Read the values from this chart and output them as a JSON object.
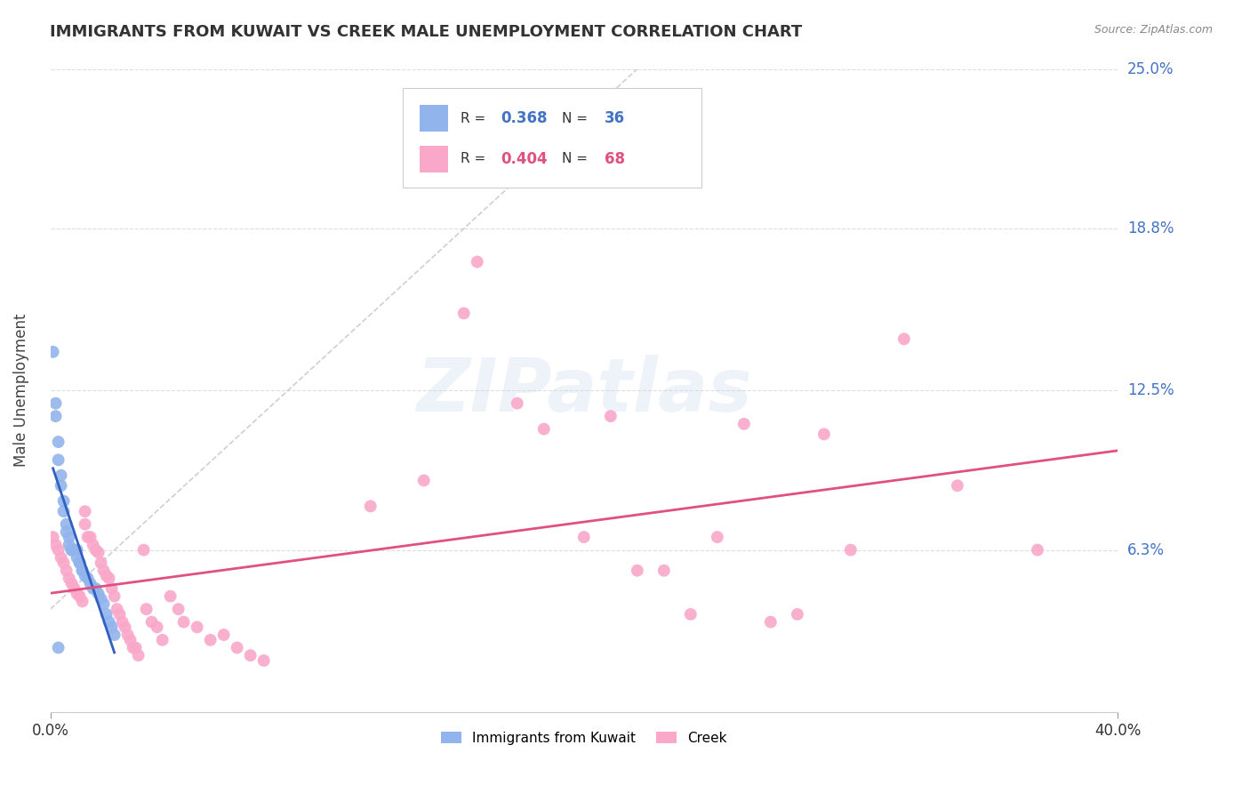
{
  "title": "IMMIGRANTS FROM KUWAIT VS CREEK MALE UNEMPLOYMENT CORRELATION CHART",
  "source": "Source: ZipAtlas.com",
  "ylabel": "Male Unemployment",
  "xlim": [
    0.0,
    0.4
  ],
  "ylim": [
    0.0,
    0.25
  ],
  "ytick_labels": [
    "6.3%",
    "12.5%",
    "18.8%",
    "25.0%"
  ],
  "ytick_values": [
    0.063,
    0.125,
    0.188,
    0.25
  ],
  "blue_color": "#92B4EC",
  "pink_color": "#F9A8C9",
  "blue_line_color": "#3060C0",
  "pink_line_color": "#E05080",
  "dashed_line_color": "#BBBBBB",
  "grid_color": "#DDDDDD",
  "background_color": "#FFFFFF",
  "blue_scatter": [
    [
      0.001,
      0.14
    ],
    [
      0.002,
      0.12
    ],
    [
      0.002,
      0.115
    ],
    [
      0.003,
      0.105
    ],
    [
      0.003,
      0.098
    ],
    [
      0.004,
      0.092
    ],
    [
      0.004,
      0.088
    ],
    [
      0.005,
      0.082
    ],
    [
      0.005,
      0.078
    ],
    [
      0.006,
      0.073
    ],
    [
      0.006,
      0.07
    ],
    [
      0.007,
      0.068
    ],
    [
      0.007,
      0.065
    ],
    [
      0.008,
      0.063
    ],
    [
      0.008,
      0.063
    ],
    [
      0.009,
      0.063
    ],
    [
      0.009,
      0.063
    ],
    [
      0.01,
      0.063
    ],
    [
      0.01,
      0.06
    ],
    [
      0.011,
      0.058
    ],
    [
      0.011,
      0.058
    ],
    [
      0.012,
      0.055
    ],
    [
      0.012,
      0.055
    ],
    [
      0.013,
      0.053
    ],
    [
      0.014,
      0.052
    ],
    [
      0.015,
      0.05
    ],
    [
      0.016,
      0.048
    ],
    [
      0.017,
      0.048
    ],
    [
      0.018,
      0.046
    ],
    [
      0.019,
      0.044
    ],
    [
      0.02,
      0.042
    ],
    [
      0.021,
      0.038
    ],
    [
      0.022,
      0.035
    ],
    [
      0.023,
      0.033
    ],
    [
      0.024,
      0.03
    ],
    [
      0.003,
      0.025
    ]
  ],
  "pink_scatter": [
    [
      0.001,
      0.068
    ],
    [
      0.002,
      0.065
    ],
    [
      0.003,
      0.063
    ],
    [
      0.004,
      0.06
    ],
    [
      0.005,
      0.058
    ],
    [
      0.006,
      0.055
    ],
    [
      0.007,
      0.052
    ],
    [
      0.008,
      0.05
    ],
    [
      0.009,
      0.048
    ],
    [
      0.01,
      0.046
    ],
    [
      0.011,
      0.045
    ],
    [
      0.012,
      0.043
    ],
    [
      0.013,
      0.078
    ],
    [
      0.013,
      0.073
    ],
    [
      0.014,
      0.068
    ],
    [
      0.015,
      0.068
    ],
    [
      0.016,
      0.065
    ],
    [
      0.017,
      0.063
    ],
    [
      0.018,
      0.062
    ],
    [
      0.019,
      0.058
    ],
    [
      0.02,
      0.055
    ],
    [
      0.021,
      0.053
    ],
    [
      0.022,
      0.052
    ],
    [
      0.023,
      0.048
    ],
    [
      0.024,
      0.045
    ],
    [
      0.025,
      0.04
    ],
    [
      0.026,
      0.038
    ],
    [
      0.027,
      0.035
    ],
    [
      0.028,
      0.033
    ],
    [
      0.029,
      0.03
    ],
    [
      0.03,
      0.028
    ],
    [
      0.031,
      0.025
    ],
    [
      0.032,
      0.025
    ],
    [
      0.033,
      0.022
    ],
    [
      0.035,
      0.063
    ],
    [
      0.036,
      0.04
    ],
    [
      0.038,
      0.035
    ],
    [
      0.04,
      0.033
    ],
    [
      0.042,
      0.028
    ],
    [
      0.045,
      0.045
    ],
    [
      0.048,
      0.04
    ],
    [
      0.05,
      0.035
    ],
    [
      0.055,
      0.033
    ],
    [
      0.06,
      0.028
    ],
    [
      0.065,
      0.03
    ],
    [
      0.07,
      0.025
    ],
    [
      0.075,
      0.022
    ],
    [
      0.08,
      0.02
    ],
    [
      0.12,
      0.08
    ],
    [
      0.14,
      0.09
    ],
    [
      0.155,
      0.155
    ],
    [
      0.16,
      0.175
    ],
    [
      0.175,
      0.12
    ],
    [
      0.185,
      0.11
    ],
    [
      0.2,
      0.068
    ],
    [
      0.21,
      0.115
    ],
    [
      0.22,
      0.055
    ],
    [
      0.23,
      0.055
    ],
    [
      0.24,
      0.038
    ],
    [
      0.25,
      0.068
    ],
    [
      0.26,
      0.112
    ],
    [
      0.27,
      0.035
    ],
    [
      0.28,
      0.038
    ],
    [
      0.29,
      0.108
    ],
    [
      0.3,
      0.063
    ],
    [
      0.32,
      0.145
    ],
    [
      0.34,
      0.088
    ],
    [
      0.37,
      0.063
    ]
  ]
}
